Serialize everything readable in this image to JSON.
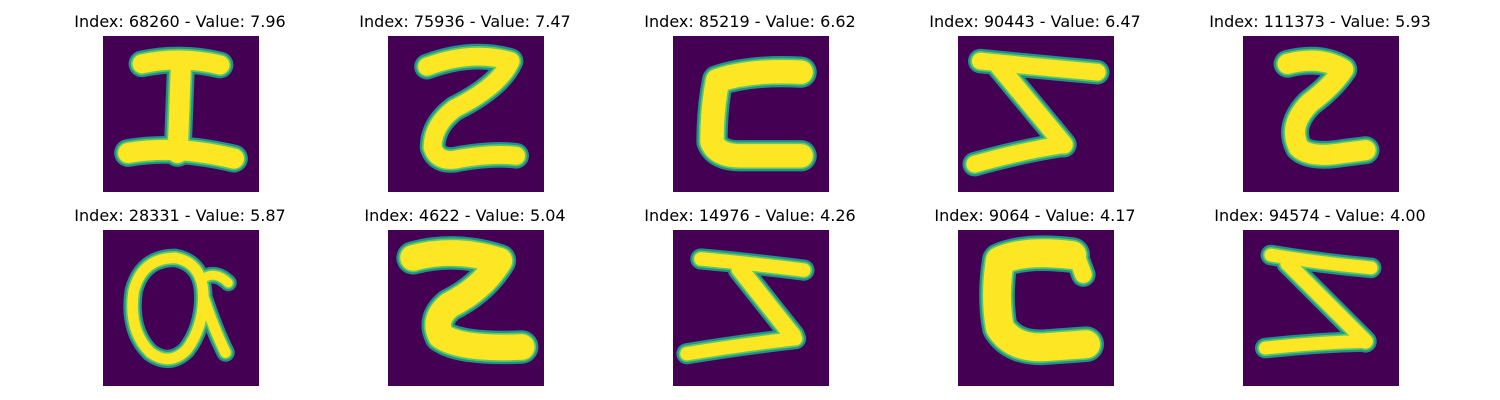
{
  "colormap": {
    "background": "#440154",
    "mid": "#21918c",
    "edge": "#5ec962",
    "foreground": "#fde725"
  },
  "panels": [
    {
      "title": "Index: 68260 - Value: 7.96",
      "glyph": "I"
    },
    {
      "title": "Index: 75936 - Value: 7.47",
      "glyph": "Z-curly"
    },
    {
      "title": "Index: 85219 - Value: 6.62",
      "glyph": "C-box"
    },
    {
      "title": "Index: 90443 - Value: 6.47",
      "glyph": "Z-inverted"
    },
    {
      "title": "Index: 111373 - Value: 5.93",
      "glyph": "Z-small"
    },
    {
      "title": "Index: 28331 - Value: 5.87",
      "glyph": "alpha"
    },
    {
      "title": "Index: 4622 - Value: 5.04",
      "glyph": "Z-bold"
    },
    {
      "title": "Index: 14976 - Value: 4.26",
      "glyph": "Z-wide"
    },
    {
      "title": "Index: 9064 - Value: 4.17",
      "glyph": "C-bold"
    },
    {
      "title": "Index: 94574 - Value: 4.00",
      "glyph": "Z-thin"
    }
  ]
}
